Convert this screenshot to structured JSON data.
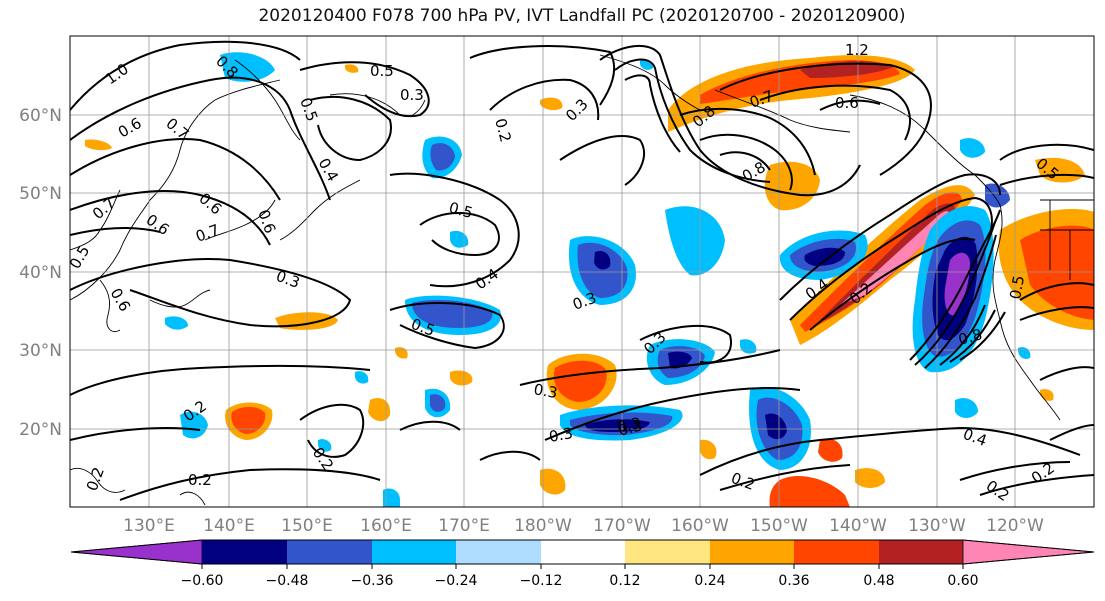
{
  "title": "2020120400 F078 700 hPa PV, IVT Landfall PC (2020120700 - 2020120900)",
  "lat_labels": [
    "60°N",
    "50°N",
    "40°N",
    "30°N",
    "20°N"
  ],
  "lon_labels": [
    "130°E",
    "140°E",
    "150°E",
    "160°E",
    "170°E",
    "180°W",
    "170°W",
    "160°W",
    "150°W",
    "140°W",
    "130°W",
    "120°W"
  ],
  "colorbar": {
    "colors": [
      "#9932CC",
      "#000080",
      "#3355CC",
      "#00BFFF",
      "#AEDDFF",
      "#FFFFFF",
      "#FFE680",
      "#FFA500",
      "#FF4500",
      "#B22222",
      "#FF85B4"
    ],
    "tick_labels": [
      "−0.60",
      "−0.48",
      "−0.36",
      "−0.24",
      "−0.12",
      "0.12",
      "0.24",
      "0.36",
      "0.48",
      "0.60"
    ]
  },
  "contour_labels": [
    "1.0",
    "0.8",
    "0.5",
    "0.3",
    "0.2",
    "0.7",
    "0.6",
    "0.5",
    "0.6",
    "0.4",
    "0.6",
    "0.7",
    "0.6",
    "0.7",
    "0.5",
    "0.6",
    "0.3",
    "0.3",
    "0.5",
    "0.4",
    "0.5",
    "0.3",
    "0.3",
    "0.3",
    "0.2",
    "0.2",
    "0.3",
    "0.2",
    "0.2",
    "1.2",
    "0.7",
    "0.6",
    "0.8",
    "0.8",
    "0.4",
    "0.2",
    "0.5",
    "0.5",
    "0.8",
    "0.4",
    "0.2",
    "0.2",
    "0.2",
    "0.3",
    "0.3"
  ],
  "colors": {
    "frame": "#000000",
    "grid": "#999999",
    "tick_label": "#808080",
    "contour": "#000000"
  }
}
